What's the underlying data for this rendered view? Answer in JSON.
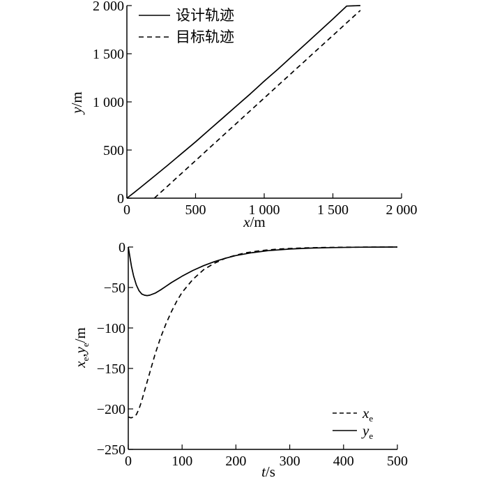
{
  "chart_data": [
    {
      "type": "line",
      "xlabel_var": "x",
      "xlabel_unit": "/m",
      "ylabel_var": "y",
      "ylabel_unit": "/m",
      "xlim": [
        0,
        2000
      ],
      "ylim": [
        0,
        2000
      ],
      "xticks": [
        0,
        500,
        1000,
        1500,
        2000
      ],
      "xtick_labels": [
        "0",
        "500",
        "1 000",
        "1 500",
        "2 000"
      ],
      "yticks": [
        0,
        500,
        1000,
        1500,
        2000
      ],
      "ytick_labels": [
        "0",
        "500",
        "1 000",
        "1 500",
        "2 000"
      ],
      "grid": false,
      "legend_position": "top-left",
      "series": [
        {
          "name": "设计轨迹",
          "style": "solid",
          "x": [
            0,
            50,
            100,
            200,
            300,
            400,
            500,
            600,
            700,
            800,
            900,
            1000,
            1100,
            1200,
            1300,
            1400,
            1500,
            1600,
            1700
          ],
          "y": [
            0,
            55,
            112,
            228,
            345,
            465,
            585,
            710,
            835,
            960,
            1085,
            1215,
            1340,
            1470,
            1600,
            1730,
            1860,
            1995,
            2000
          ]
        },
        {
          "name": "目标轨迹",
          "style": "dashed",
          "x": [
            200,
            300,
            400,
            500,
            600,
            700,
            800,
            900,
            1000,
            1100,
            1200,
            1300,
            1400,
            1500,
            1600,
            1700
          ],
          "y": [
            0,
            130,
            260,
            390,
            520,
            650,
            780,
            910,
            1040,
            1170,
            1300,
            1430,
            1560,
            1690,
            1820,
            1950
          ]
        }
      ]
    },
    {
      "type": "line",
      "xlabel_var": "t",
      "xlabel_unit": "/s",
      "ylabel_a": "x",
      "ylabel_b": "y",
      "ylabel_sub": "e",
      "ylabel_sep": ",",
      "ylabel_unit": "/m",
      "xlim": [
        0,
        500
      ],
      "ylim": [
        -250,
        0
      ],
      "xticks": [
        0,
        100,
        200,
        300,
        400,
        500
      ],
      "xtick_labels": [
        "0",
        "100",
        "200",
        "300",
        "400",
        "500"
      ],
      "yticks": [
        0,
        -50,
        -100,
        -150,
        -200,
        -250
      ],
      "ytick_labels": [
        "0",
        "−50",
        "−100",
        "−150",
        "−200",
        "−250"
      ],
      "grid": false,
      "legend_position": "bottom-right",
      "series": [
        {
          "name": "x",
          "subscript": "e",
          "style": "dashed",
          "x": [
            0,
            5,
            10,
            15,
            20,
            25,
            30,
            40,
            50,
            60,
            70,
            80,
            90,
            100,
            120,
            140,
            160,
            180,
            200,
            220,
            240,
            260,
            280,
            300,
            330,
            360,
            400,
            450,
            500
          ],
          "y": [
            -210,
            -211,
            -210,
            -207,
            -200,
            -190,
            -178,
            -155,
            -132,
            -112,
            -95,
            -80,
            -67,
            -56,
            -40,
            -28,
            -20,
            -14,
            -10,
            -7,
            -5,
            -3.5,
            -2.5,
            -1.8,
            -1,
            -0.6,
            -0.3,
            -0.1,
            0
          ]
        },
        {
          "name": "y",
          "subscript": "e",
          "style": "solid",
          "x": [
            0,
            3,
            6,
            10,
            15,
            20,
            25,
            30,
            35,
            40,
            50,
            60,
            70,
            80,
            100,
            120,
            140,
            160,
            180,
            200,
            230,
            260,
            300,
            340,
            380,
            420,
            460,
            500
          ],
          "y": [
            0,
            -12,
            -24,
            -36,
            -47,
            -54,
            -58,
            -59.5,
            -60,
            -59.5,
            -57,
            -53,
            -48.5,
            -44,
            -36,
            -29,
            -23,
            -18,
            -14,
            -10.5,
            -7,
            -4.5,
            -2.5,
            -1.3,
            -0.7,
            -0.3,
            -0.1,
            0
          ]
        }
      ]
    }
  ]
}
